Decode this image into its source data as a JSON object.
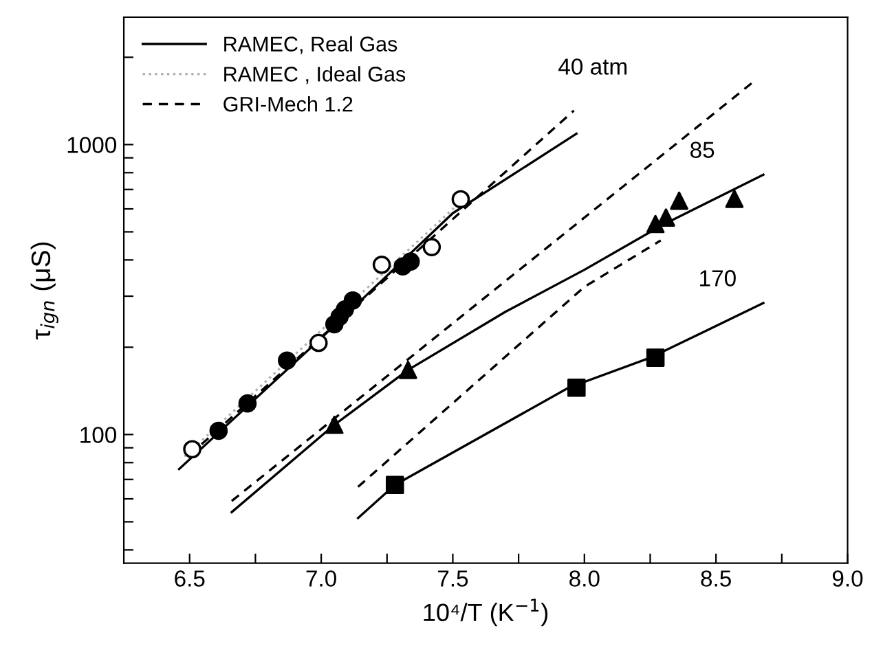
{
  "chart_data": {
    "type": "line",
    "xlabel": "10⁴/T (K$^{−1}$)",
    "ylabel": "τ$_{ign}$ (μS)",
    "log": "y",
    "grid": false,
    "legend": "top left",
    "xlim": [
      6.25,
      9.0
    ],
    "ylim": [
      36,
      2750
    ],
    "xticks": [
      {
        "value": 6.5,
        "label": "6.5"
      },
      {
        "value": 6.75,
        "label": null
      },
      {
        "value": 7.0,
        "label": "7.0"
      },
      {
        "value": 7.25,
        "label": null
      },
      {
        "value": 7.5,
        "label": "7.5"
      },
      {
        "value": 7.75,
        "label": null
      },
      {
        "value": 8.0,
        "label": "8.0"
      },
      {
        "value": 8.25,
        "label": null
      },
      {
        "value": 8.5,
        "label": "8.5"
      },
      {
        "value": 8.75,
        "label": null
      },
      {
        "value": 9.0,
        "label": "9.0"
      }
    ],
    "yticks": [
      {
        "value": 40,
        "label": null
      },
      {
        "value": 50,
        "label": null
      },
      {
        "value": 60,
        "label": null
      },
      {
        "value": 70,
        "label": null
      },
      {
        "value": 80,
        "label": null
      },
      {
        "value": 90,
        "label": null
      },
      {
        "value": 100,
        "label": "100"
      },
      {
        "value": 200,
        "label": null
      },
      {
        "value": 300,
        "label": null
      },
      {
        "value": 400,
        "label": null
      },
      {
        "value": 500,
        "label": null
      },
      {
        "value": 600,
        "label": null
      },
      {
        "value": 700,
        "label": null
      },
      {
        "value": 800,
        "label": null
      },
      {
        "value": 900,
        "label": null
      },
      {
        "value": 1000,
        "label": "1000"
      },
      {
        "value": 2000,
        "label": null
      }
    ],
    "series": [
      {
        "name": "RAMEC, Real Gas",
        "line_style": "solid",
        "marker": "none",
        "color": "#000000",
        "x": [
          6.46,
          7.0,
          7.5,
          7.97
        ],
        "values": [
          76,
          215,
          580,
          1090
        ]
      },
      {
        "name": "RAMEC , Ideal Gas",
        "line_style": "dotted",
        "marker": "none",
        "color": "#b0b0b0",
        "x": [
          6.48,
          7.55
        ],
        "values": [
          84,
          660
        ]
      },
      {
        "name": "GRI-Mech 1.2",
        "line_style": "dashed",
        "marker": "none",
        "color": "#000000",
        "x": [
          6.5,
          7.96
        ],
        "values": [
          85,
          1310
        ]
      },
      {
        "line_style": "solid",
        "marker": "none",
        "color": "#000000",
        "x": [
          6.66,
          7.05,
          7.33,
          7.7,
          8.0,
          8.3,
          8.68
        ],
        "values": [
          54,
          108,
          167,
          265,
          370,
          530,
          787
        ]
      },
      {
        "line_style": "dashed",
        "marker": "none",
        "color": "#000000",
        "x": [
          6.66,
          8.65
        ],
        "values": [
          59,
          1668
        ]
      },
      {
        "line_style": "solid",
        "marker": "none",
        "color": "#000000",
        "x": [
          7.14,
          7.28,
          7.94,
          8.25,
          8.68
        ],
        "values": [
          51.5,
          67,
          145,
          184,
          284
        ]
      },
      {
        "line_style": "dashed",
        "marker": "none",
        "color": "#000000",
        "x": [
          7.14,
          8.0,
          8.29
        ],
        "values": [
          66,
          323,
          467
        ]
      },
      {
        "type": "scatter",
        "marker": "circle",
        "color": "#ffffff",
        "x": [
          6.51,
          6.99,
          7.23,
          7.42,
          7.53
        ],
        "values": [
          89,
          207,
          385,
          443,
          648
        ]
      },
      {
        "type": "scatter",
        "marker": "circle",
        "color": "#000000",
        "x": [
          6.61,
          6.72,
          6.87,
          7.05,
          7.07,
          7.09,
          7.12,
          7.31,
          7.34
        ],
        "values": [
          103,
          128,
          180,
          240,
          255,
          270,
          290,
          380,
          395
        ]
      },
      {
        "type": "scatter",
        "marker": "triangle",
        "color": "#000000",
        "x": [
          7.05,
          7.33,
          8.27,
          8.31,
          8.36,
          8.57
        ],
        "values": [
          108,
          167,
          532,
          560,
          640,
          650
        ]
      },
      {
        "type": "scatter",
        "marker": "square",
        "color": "#000000",
        "x": [
          7.28,
          7.97,
          8.27
        ],
        "values": [
          67,
          145,
          184
        ]
      }
    ],
    "annotations": [
      "40 atm",
      "85",
      "170"
    ]
  }
}
